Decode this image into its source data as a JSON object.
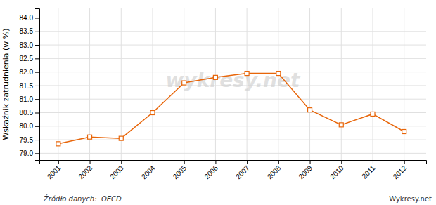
{
  "chart_data": {
    "type": "line",
    "x": [
      2001,
      2002,
      2003,
      2004,
      2005,
      2006,
      2007,
      2008,
      2009,
      2010,
      2011,
      2012
    ],
    "values": [
      79.35,
      79.6,
      79.55,
      80.5,
      81.6,
      81.8,
      81.95,
      81.95,
      80.6,
      80.05,
      80.45,
      79.8
    ],
    "color": "#E8660A",
    "marker": "square",
    "y_label": "Wskaźnik zatrudnienia (w %)",
    "xlim": [
      2000.4,
      2012.7
    ],
    "xticks": [
      2001,
      2002,
      2003,
      2004,
      2005,
      2006,
      2007,
      2008,
      2009,
      2010,
      2011,
      2012
    ],
    "ylim": [
      78.75,
      84.35
    ],
    "yticks": [
      {
        "value": 79,
        "label": "79.0"
      },
      79.5,
      {
        "value": 80,
        "label": "80.0"
      },
      80.5,
      {
        "value": 81,
        "label": "81.0"
      },
      81.5,
      {
        "value": 82,
        "label": "82.0"
      },
      82.5,
      {
        "value": 83,
        "label": "83.0"
      },
      83.5,
      {
        "value": 84,
        "label": "84.0"
      }
    ],
    "grid": true,
    "annotations": [
      "wykresy.net",
      "Źródło danych:  OECD",
      "Wykresy.net"
    ]
  }
}
